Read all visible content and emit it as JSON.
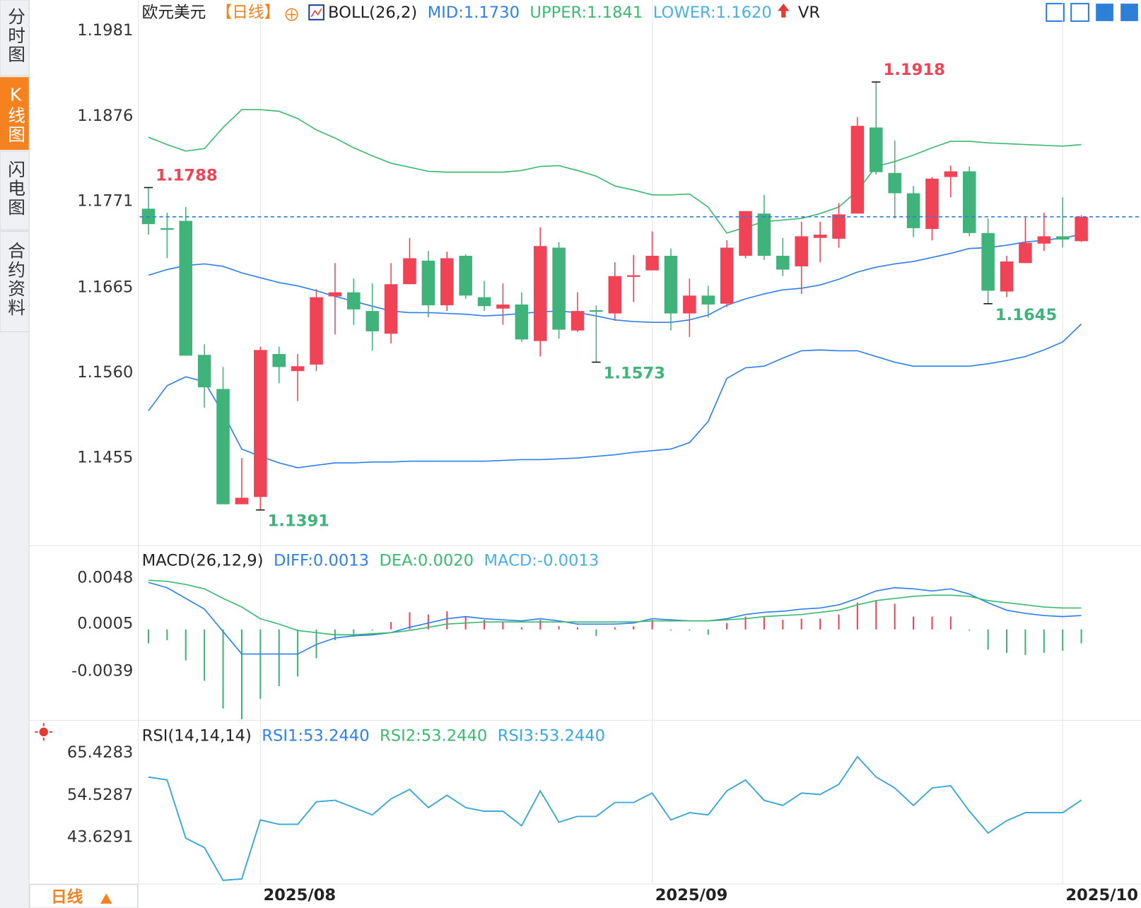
{
  "tabs": [
    "分时图",
    "K线图",
    "闪电图",
    "合约资料"
  ],
  "period": "日线",
  "chart_data": [
    {
      "type": "candlestick",
      "title": "欧元美元",
      "subtitle": "【日线】",
      "indicator": "BOLL(26,2)",
      "extra_indicator": "VR",
      "up_color": "#f04456",
      "down_color": "#3fb37a",
      "categories": [
        null,
        null,
        null,
        null,
        null,
        null,
        "2025/08",
        null,
        null,
        null,
        null,
        null,
        null,
        null,
        null,
        null,
        null,
        null,
        null,
        null,
        null,
        null,
        null,
        null,
        null,
        null,
        null,
        "2025/09",
        null,
        null,
        null,
        null,
        null,
        null,
        null,
        null,
        null,
        null,
        null,
        null,
        null,
        null,
        null,
        null,
        null,
        null,
        null,
        null,
        null,
        "2025/10",
        null
      ],
      "open": [
        1.1762,
        1.1738,
        1.1747,
        1.1582,
        1.154,
        1.1398,
        1.1407,
        1.1583,
        1.1562,
        1.157,
        1.1654,
        1.1659,
        1.1636,
        1.1608,
        1.1669,
        1.1698,
        1.1643,
        1.1704,
        1.1653,
        1.1639,
        1.1644,
        1.1599,
        1.1714,
        1.1612,
        1.1637,
        1.1633,
        1.1678,
        1.1686,
        1.1704,
        1.1633,
        1.1655,
        1.1645,
        1.1704,
        1.1756,
        1.1704,
        1.1691,
        1.1726,
        1.1725,
        1.1756,
        1.1862,
        1.1806,
        1.1781,
        1.1737,
        1.1801,
        1.1808,
        1.1732,
        1.166,
        1.1695,
        1.1719,
        1.1728,
        1.1722
      ],
      "high": [
        1.1788,
        1.1757,
        1.1764,
        1.1595,
        1.1567,
        1.1455,
        1.1592,
        1.1592,
        1.1583,
        1.1663,
        1.1695,
        1.1676,
        1.167,
        1.1695,
        1.1726,
        1.171,
        1.1709,
        1.1706,
        1.1673,
        1.167,
        1.1659,
        1.1739,
        1.1721,
        1.1659,
        1.1643,
        1.1696,
        1.1705,
        1.1734,
        1.1713,
        1.1676,
        1.1667,
        1.1723,
        1.1759,
        1.1779,
        1.1726,
        1.1746,
        1.1746,
        1.1769,
        1.1875,
        1.1918,
        1.1846,
        1.179,
        1.1801,
        1.1815,
        1.1814,
        1.175,
        1.1704,
        1.1751,
        1.1757,
        1.1776,
        1.1754
      ],
      "low": [
        1.173,
        1.1701,
        1.1581,
        1.1517,
        1.1398,
        1.1398,
        1.1391,
        1.1547,
        1.1525,
        1.1562,
        1.1607,
        1.1619,
        1.1587,
        1.1596,
        1.1669,
        1.1628,
        1.1636,
        1.1651,
        1.1636,
        1.1619,
        1.1598,
        1.158,
        1.1602,
        1.161,
        1.1573,
        1.1624,
        1.1647,
        1.1686,
        1.1612,
        1.1604,
        1.1628,
        1.1641,
        1.1701,
        1.1699,
        1.1679,
        1.1657,
        1.1696,
        1.1714,
        1.1756,
        1.1804,
        1.175,
        1.1727,
        1.1723,
        1.1776,
        1.1728,
        1.1645,
        1.1653,
        1.1695,
        1.171,
        1.1714,
        1.1721
      ],
      "close": [
        1.1743,
        1.1736,
        1.1581,
        1.1542,
        1.1398,
        1.1406,
        1.1588,
        1.1567,
        1.1568,
        1.1653,
        1.1659,
        1.1638,
        1.1611,
        1.1669,
        1.1701,
        1.1643,
        1.1701,
        1.1655,
        1.1642,
        1.1644,
        1.1601,
        1.1716,
        1.1613,
        1.1636,
        1.1635,
        1.1679,
        1.168,
        1.1704,
        1.1633,
        1.1655,
        1.1644,
        1.1714,
        1.1759,
        1.1704,
        1.1687,
        1.1728,
        1.173,
        1.1755,
        1.1864,
        1.1807,
        1.1781,
        1.1738,
        1.1799,
        1.1808,
        1.1732,
        1.1661,
        1.1697,
        1.172,
        1.1728,
        1.1724,
        1.1752
      ],
      "series": [
        {
          "name": "MID:1.1730",
          "color": "#2f80ed",
          "values": [
            1.168,
            1.1687,
            1.1692,
            1.1694,
            1.1691,
            1.1683,
            1.1677,
            1.1671,
            1.1667,
            1.1661,
            1.1654,
            1.1648,
            1.1642,
            1.1636,
            1.1634,
            1.1634,
            1.1633,
            1.1632,
            1.163,
            1.1631,
            1.1633,
            1.1635,
            1.1636,
            1.1634,
            1.163,
            1.1625,
            1.1623,
            1.1622,
            1.1622,
            1.1625,
            1.1631,
            1.1643,
            1.1651,
            1.1657,
            1.1662,
            1.1664,
            1.1668,
            1.1675,
            1.1684,
            1.169,
            1.1694,
            1.1697,
            1.1702,
            1.1707,
            1.1713,
            1.1714,
            1.1717,
            1.1721,
            1.1723,
            1.1726,
            1.173
          ]
        },
        {
          "name": "UPPER:1.1841",
          "color": "#3cba6f",
          "values": [
            1.185,
            1.1841,
            1.1833,
            1.1836,
            1.1862,
            1.1884,
            1.1884,
            1.1882,
            1.1873,
            1.1859,
            1.1849,
            1.1837,
            1.1827,
            1.1818,
            1.1813,
            1.1808,
            1.1807,
            1.1807,
            1.1807,
            1.1807,
            1.1809,
            1.1814,
            1.1815,
            1.1809,
            1.1802,
            1.179,
            1.1785,
            1.1779,
            1.1779,
            1.178,
            1.1764,
            1.1732,
            1.1739,
            1.1746,
            1.1748,
            1.175,
            1.1756,
            1.1764,
            1.1784,
            1.1814,
            1.182,
            1.1828,
            1.1837,
            1.1845,
            1.1845,
            1.1843,
            1.1842,
            1.1841,
            1.184,
            1.1839,
            1.1841
          ]
        },
        {
          "name": "LOWER:1.1620",
          "color": "#4ab0e8",
          "line_color": "#2f80ed",
          "values": [
            1.1513,
            1.1544,
            1.1555,
            1.1549,
            1.151,
            1.1466,
            1.1457,
            1.1449,
            1.1443,
            1.1446,
            1.1449,
            1.1449,
            1.145,
            1.145,
            1.1451,
            1.1451,
            1.1451,
            1.1451,
            1.1451,
            1.1452,
            1.1453,
            1.1453,
            1.1454,
            1.1455,
            1.1457,
            1.1459,
            1.1462,
            1.1464,
            1.1466,
            1.1474,
            1.15,
            1.1553,
            1.1566,
            1.1568,
            1.1578,
            1.1587,
            1.1588,
            1.1587,
            1.1587,
            1.158,
            1.1573,
            1.1568,
            1.1568,
            1.1568,
            1.1568,
            1.1571,
            1.1575,
            1.158,
            1.1588,
            1.1598,
            1.162
          ]
        }
      ],
      "extreme_labels": [
        1.1788,
        1.1918,
        1.1391,
        1.1573,
        1.1645
      ],
      "current_price": 1.1752,
      "current_price_color": "#2f7fd8",
      "ylim": [
        1.1347,
        1.2019
      ],
      "yticks": [
        1.1981,
        1.1876,
        1.1771,
        1.1665,
        {
          "value": 1.156,
          "label": "1.1560"
        },
        1.1455
      ]
    },
    {
      "type": "macd",
      "title": "MACD(26,12,9)",
      "up_color": "#f04456",
      "down_color": "#3fb37a",
      "series": [
        {
          "name": "DIFF:0.0013",
          "color": "#2f80ed",
          "values": [
            0.0044,
            0.0039,
            0.0029,
            0.0019,
            -0.0002,
            -0.0023,
            -0.0023,
            -0.0023,
            -0.0023,
            -0.0014,
            -0.0008,
            -0.0006,
            -0.0005,
            -0.0003,
            0.0002,
            0.0006,
            0.001,
            0.0012,
            0.001,
            0.0009,
            0.0008,
            0.001,
            0.0008,
            0.0005,
            0.0005,
            0.0005,
            0.0006,
            0.001,
            0.0009,
            0.0008,
            0.0008,
            0.001,
            0.0014,
            0.0016,
            0.0017,
            0.0019,
            0.002,
            0.0023,
            0.0029,
            0.0036,
            0.0039,
            0.0038,
            0.0036,
            0.0038,
            0.0033,
            0.0025,
            0.0018,
            0.0015,
            0.0013,
            0.0012,
            0.0013
          ]
        },
        {
          "name": "DEA:0.0020",
          "color": "#3cba6f",
          "values": [
            0.0046,
            0.0045,
            0.0042,
            0.0038,
            0.0029,
            0.0021,
            0.001,
            0.0005,
            -0.0001,
            -0.0003,
            -0.0005,
            -0.0005,
            -0.0004,
            -0.0003,
            -0.0001,
            0.0002,
            0.0005,
            0.0006,
            0.0007,
            0.0007,
            0.0007,
            0.0007,
            0.0007,
            0.0007,
            0.0007,
            0.0007,
            0.0007,
            0.0008,
            0.0008,
            0.0008,
            0.0008,
            0.0009,
            0.001,
            0.0012,
            0.0013,
            0.0014,
            0.0016,
            0.0018,
            0.0023,
            0.0027,
            0.0029,
            0.0031,
            0.0032,
            0.0032,
            0.0031,
            0.0027,
            0.0025,
            0.0023,
            0.0021,
            0.002,
            0.002
          ]
        }
      ],
      "histogram": {
        "name": "MACD:-0.0013",
        "color": "#4ab0e8",
        "values": [
          -0.0013,
          -0.001,
          -0.0029,
          -0.0048,
          -0.0074,
          -0.0084,
          -0.0065,
          -0.0053,
          -0.0044,
          -0.0027,
          -0.001,
          -0.0007,
          -0.0001,
          0.0007,
          0.0016,
          0.0014,
          0.0017,
          0.0012,
          0.0009,
          0.0007,
          0.0002,
          0.0009,
          0.0003,
          0.0002,
          -0.0006,
          0.0002,
          0.0003,
          0.0009,
          -0.0001,
          -0.0001,
          -0.0005,
          0.0006,
          0.0012,
          0.0012,
          0.0009,
          0.001,
          0.001,
          0.0014,
          0.0025,
          0.0027,
          0.0024,
          0.0012,
          0.0012,
          0.0012,
          -0.0001,
          -0.0019,
          -0.0022,
          -0.0024,
          -0.0022,
          -0.002,
          -0.0013
        ]
      },
      "ylim": [
        -0.0085,
        0.0077
      ],
      "yticks": [
        0.0048,
        0.0005,
        -0.0039
      ]
    },
    {
      "type": "line",
      "title": "RSI(14,14,14)",
      "series": [
        {
          "name": "RSI1:53.2440",
          "color": "#2f80ed",
          "values": [
            59.23,
            58.48,
            43.44,
            41.0,
            32.54,
            32.92,
            48.14,
            47.01,
            47.01,
            52.84,
            53.21,
            51.33,
            49.45,
            53.59,
            56.03,
            51.33,
            54.53,
            51.33,
            50.4,
            50.4,
            46.64,
            55.66,
            47.58,
            49.08,
            49.08,
            52.65,
            52.65,
            55.09,
            48.14,
            50.02,
            49.45,
            55.66,
            58.48,
            53.21,
            51.9,
            55.09,
            54.72,
            57.35,
            64.49,
            59.23,
            56.41,
            51.9,
            56.41,
            56.97,
            50.4,
            44.76,
            47.95,
            50.02,
            50.02,
            50.02,
            53.244
          ]
        },
        {
          "name": "RSI2:53.2440",
          "color": "#3cba6f",
          "values": [
            59.23,
            58.48,
            43.44,
            41.0,
            32.54,
            32.92,
            48.14,
            47.01,
            47.01,
            52.84,
            53.21,
            51.33,
            49.45,
            53.59,
            56.03,
            51.33,
            54.53,
            51.33,
            50.4,
            50.4,
            46.64,
            55.66,
            47.58,
            49.08,
            49.08,
            52.65,
            52.65,
            55.09,
            48.14,
            50.02,
            49.45,
            55.66,
            58.48,
            53.21,
            51.9,
            55.09,
            54.72,
            57.35,
            64.49,
            59.23,
            56.41,
            51.9,
            56.41,
            56.97,
            50.4,
            44.76,
            47.95,
            50.02,
            50.02,
            50.02,
            53.244
          ]
        },
        {
          "name": "RSI3:53.2440",
          "color": "#3aa6e2",
          "values": [
            59.23,
            58.48,
            43.44,
            41.0,
            32.54,
            32.92,
            48.14,
            47.01,
            47.01,
            52.84,
            53.21,
            51.33,
            49.45,
            53.59,
            56.03,
            51.33,
            54.53,
            51.33,
            50.4,
            50.4,
            46.64,
            55.66,
            47.58,
            49.08,
            49.08,
            52.65,
            52.65,
            55.09,
            48.14,
            50.02,
            49.45,
            55.66,
            58.48,
            53.21,
            51.9,
            55.09,
            54.72,
            57.35,
            64.49,
            59.23,
            56.41,
            51.9,
            56.41,
            56.97,
            50.4,
            44.76,
            47.95,
            50.02,
            50.02,
            50.02,
            53.244
          ]
        }
      ],
      "ylim": [
        31.6,
        73.32
      ],
      "yticks": [
        65.4283,
        54.5287,
        43.6291
      ]
    }
  ]
}
